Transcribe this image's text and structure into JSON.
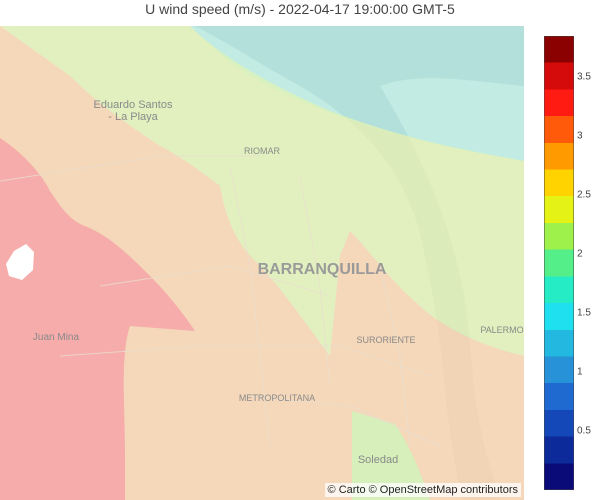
{
  "title": "U wind speed (m/s) - 2022-04-17 19:00:00 GMT-5",
  "map": {
    "place_labels": {
      "eduardo_santos": [
        "Eduardo Santos",
        "- La Playa"
      ],
      "riomar": "RIOMAR",
      "barranquilla": "BARRANQUILLA",
      "juan_mina": "Juan Mina",
      "suroriente": "SURORIENTE",
      "palermo": "PALERMO",
      "metropolitana": "METROPOLITANA",
      "soledad": "Soledad"
    },
    "attribution": "© Carto © OpenStreetMap contributors"
  },
  "legend": {
    "colorscale": [
      "#0a0a78",
      "#0c2a9a",
      "#1447b8",
      "#1f6ad0",
      "#2792d8",
      "#22b8e0",
      "#1fe0ee",
      "#25ecc4",
      "#55ef8a",
      "#9ef04a",
      "#e4f215",
      "#ffd300",
      "#ff9a00",
      "#ff5a0a",
      "#ff1a12",
      "#d50b0b",
      "#8b0000"
    ],
    "ticks": [
      "3.5",
      "3",
      "2.5",
      "2",
      "1.5",
      "1",
      "0.5"
    ],
    "tick_values": [
      3.5,
      3,
      2.5,
      2,
      1.5,
      1,
      0.5
    ],
    "range": [
      0,
      3.85
    ]
  },
  "region_colors": {
    "cyan": "#9eefe8",
    "light_green": "#dff2b5",
    "peach": "#f7d3b3",
    "red": "#f5a7a8",
    "soledad_green": "#d4f0bb"
  }
}
